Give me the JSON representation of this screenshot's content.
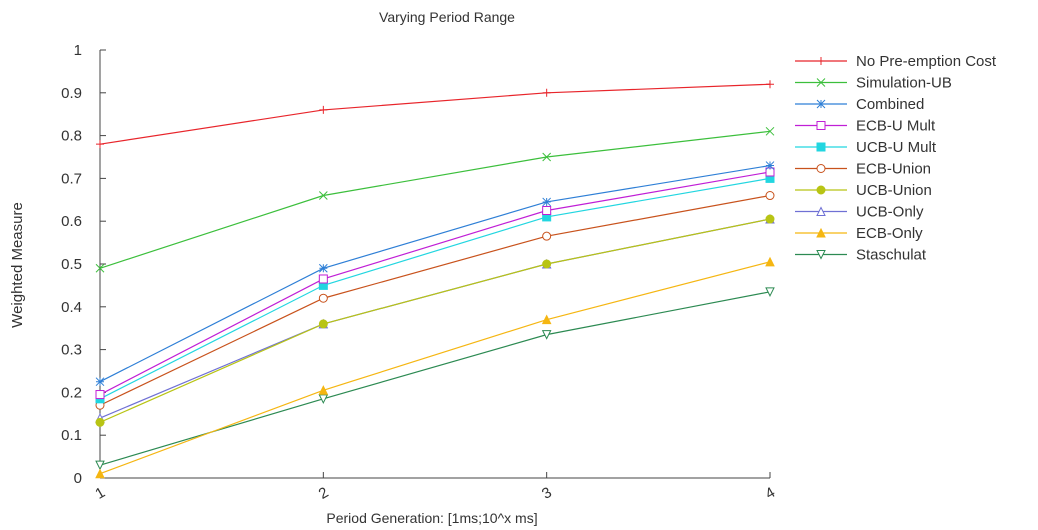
{
  "chart_data": {
    "type": "line",
    "title": "Varying Period Range",
    "xlabel": "Period Generation: [1ms;10^x ms]",
    "ylabel": "Weighted Measure",
    "x": [
      1,
      2,
      3,
      4
    ],
    "x_tick_labels": [
      "1",
      "2",
      "3",
      "4"
    ],
    "ylim": [
      0,
      1
    ],
    "y_ticks": [
      0,
      0.1,
      0.2,
      0.3,
      0.4,
      0.5,
      0.6,
      0.7,
      0.8,
      0.9,
      1
    ],
    "y_tick_labels": [
      "0",
      "0.1",
      "0.2",
      "0.3",
      "0.4",
      "0.5",
      "0.6",
      "0.7",
      "0.8",
      "0.9",
      "1"
    ],
    "grid": false,
    "legend_position": "right",
    "series": [
      {
        "name": "No Pre-emption Cost",
        "color": "#e8252b",
        "marker": "plus",
        "values": [
          0.78,
          0.86,
          0.9,
          0.92
        ]
      },
      {
        "name": "Simulation-UB",
        "color": "#3cbf3c",
        "marker": "x",
        "values": [
          0.49,
          0.66,
          0.75,
          0.81
        ]
      },
      {
        "name": "Combined",
        "color": "#2e7fd6",
        "marker": "star",
        "values": [
          0.225,
          0.49,
          0.645,
          0.73
        ]
      },
      {
        "name": "ECB-U Mult",
        "color": "#c01fd6",
        "marker": "square",
        "values": [
          0.195,
          0.465,
          0.625,
          0.715
        ]
      },
      {
        "name": "UCB-U Mult",
        "color": "#22d6e0",
        "marker": "filled-square",
        "values": [
          0.185,
          0.45,
          0.61,
          0.7
        ]
      },
      {
        "name": "ECB-Union",
        "color": "#c8521c",
        "marker": "circle",
        "values": [
          0.17,
          0.42,
          0.565,
          0.66
        ]
      },
      {
        "name": "UCB-Union",
        "color": "#b8c414",
        "marker": "filled-circle",
        "values": [
          0.13,
          0.36,
          0.5,
          0.605
        ]
      },
      {
        "name": "UCB-Only",
        "color": "#6f70d4",
        "marker": "triangle",
        "values": [
          0.14,
          0.36,
          0.5,
          0.605
        ]
      },
      {
        "name": "ECB-Only",
        "color": "#f5b612",
        "marker": "filled-triangle",
        "values": [
          0.01,
          0.205,
          0.37,
          0.505
        ]
      },
      {
        "name": "Staschulat",
        "color": "#2c8a52",
        "marker": "triangle-down",
        "values": [
          0.03,
          0.185,
          0.335,
          0.435
        ]
      }
    ]
  }
}
